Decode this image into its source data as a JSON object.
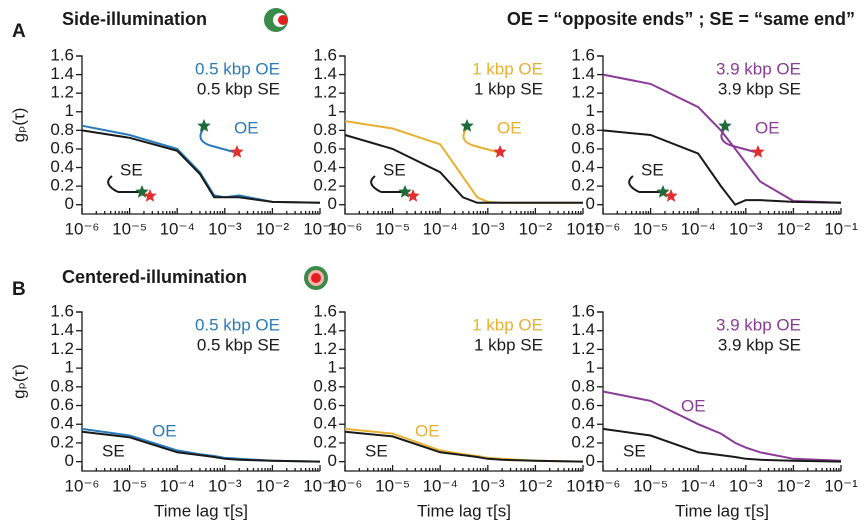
{
  "panels": [
    {
      "letter": "A",
      "title": "Side-illumination"
    },
    {
      "letter": "B",
      "title": "Centered-illumination"
    }
  ],
  "legend_note": "OE = “opposite ends” ; SE = “same end”",
  "chart_data": [
    {
      "type": "line",
      "log_x": true,
      "ylabel": "gₚ(τ)",
      "annotations": [
        "OE",
        "SE"
      ],
      "x": [
        1e-06,
        1e-05,
        0.0001,
        0.0003,
        0.0006,
        0.001,
        0.002,
        0.01,
        0.1
      ],
      "series": [
        {
          "name": "0.5 kbp OE",
          "color": "#2b7bba",
          "values": [
            0.85,
            0.75,
            0.6,
            0.35,
            0.1,
            0.08,
            0.1,
            0.03,
            0.02
          ]
        },
        {
          "name": "0.5 kbp SE",
          "color": "#1a1a1a",
          "values": [
            0.8,
            0.72,
            0.58,
            0.33,
            0.08,
            0.08,
            0.08,
            0.03,
            0.02
          ]
        }
      ],
      "xlim": [
        1e-06,
        0.1
      ],
      "ylim": [
        -0.1,
        1.6
      ],
      "xticks": [
        {
          "value": 1e-06,
          "label": "10⁻⁶"
        },
        {
          "value": 1e-05,
          "label": "10⁻⁵"
        },
        {
          "value": 0.0001,
          "label": "10⁻⁴"
        },
        {
          "value": 0.001,
          "label": "10⁻³"
        },
        {
          "value": 0.01,
          "label": "10⁻²"
        },
        {
          "value": 0.1,
          "label": "10⁻¹"
        }
      ],
      "yticks": [
        0,
        0.2,
        0.4,
        0.6,
        0.8,
        1,
        1.2,
        1.4,
        1.6
      ]
    },
    {
      "type": "line",
      "log_x": true,
      "annotations": [
        "OE",
        "SE"
      ],
      "x": [
        1e-06,
        1e-05,
        0.0001,
        0.0003,
        0.0006,
        0.001,
        0.002,
        0.01,
        0.1
      ],
      "series": [
        {
          "name": "1 kbp OE",
          "color": "#e8b030",
          "values": [
            0.9,
            0.82,
            0.65,
            0.3,
            0.08,
            0.03,
            0.02,
            0.02,
            0.02
          ]
        },
        {
          "name": "1 kbp SE",
          "color": "#1a1a1a",
          "values": [
            0.75,
            0.6,
            0.35,
            0.08,
            0.02,
            0.02,
            0.02,
            0.02,
            0.02
          ]
        }
      ],
      "xlim": [
        1e-06,
        0.1
      ],
      "ylim": [
        -0.1,
        1.6
      ],
      "xticks": [
        {
          "value": 1e-06,
          "label": "10⁻⁶"
        },
        {
          "value": 1e-05,
          "label": "10⁻⁵"
        },
        {
          "value": 0.0001,
          "label": "10⁻⁴"
        },
        {
          "value": 0.001,
          "label": "10⁻³"
        },
        {
          "value": 0.01,
          "label": "10⁻²"
        },
        {
          "value": 0.1,
          "label": "10⁻¹"
        }
      ],
      "yticks": [
        0,
        0.2,
        0.4,
        0.6,
        0.8,
        1,
        1.2,
        1.4,
        1.6
      ]
    },
    {
      "type": "line",
      "log_x": true,
      "annotations": [
        "OE",
        "SE"
      ],
      "x": [
        1e-06,
        1e-05,
        0.0001,
        0.0003,
        0.0006,
        0.001,
        0.002,
        0.01,
        0.1
      ],
      "series": [
        {
          "name": "3.9 kbp OE",
          "color": "#8a3c96",
          "values": [
            1.4,
            1.3,
            1.05,
            0.8,
            0.6,
            0.45,
            0.25,
            0.04,
            0.02
          ]
        },
        {
          "name": "3.9 kbp SE",
          "color": "#1a1a1a",
          "values": [
            0.8,
            0.75,
            0.55,
            0.2,
            0,
            0.05,
            0.05,
            0.03,
            0.02
          ]
        }
      ],
      "xlim": [
        1e-06,
        0.1
      ],
      "ylim": [
        -0.1,
        1.6
      ],
      "xticks": [
        {
          "value": 1e-06,
          "label": "10⁻⁶"
        },
        {
          "value": 1e-05,
          "label": "10⁻⁵"
        },
        {
          "value": 0.0001,
          "label": "10⁻⁴"
        },
        {
          "value": 0.001,
          "label": "10⁻³"
        },
        {
          "value": 0.01,
          "label": "10⁻²"
        },
        {
          "value": 0.1,
          "label": "10⁻¹"
        }
      ],
      "yticks": [
        0,
        0.2,
        0.4,
        0.6,
        0.8,
        1,
        1.2,
        1.4,
        1.6
      ]
    },
    {
      "type": "line",
      "log_x": true,
      "ylabel": "gₚ(τ)",
      "xlabel": "Time lag τ[s]",
      "annotations": [
        "OE",
        "SE"
      ],
      "x": [
        1e-06,
        1e-05,
        0.0001,
        0.0003,
        0.0006,
        0.001,
        0.002,
        0.01,
        0.1
      ],
      "series": [
        {
          "name": "0.5 kbp OE",
          "color": "#2b7bba",
          "values": [
            0.35,
            0.28,
            0.12,
            0.08,
            0.06,
            0.04,
            0.03,
            0.01,
            0
          ]
        },
        {
          "name": "0.5 kbp SE",
          "color": "#1a1a1a",
          "values": [
            0.32,
            0.26,
            0.1,
            0.07,
            0.05,
            0.03,
            0.02,
            0.01,
            0
          ]
        }
      ],
      "xlim": [
        1e-06,
        0.1
      ],
      "ylim": [
        -0.1,
        1.6
      ],
      "xticks": [
        {
          "value": 1e-06,
          "label": "10⁻⁶"
        },
        {
          "value": 1e-05,
          "label": "10⁻⁵"
        },
        {
          "value": 0.0001,
          "label": "10⁻⁴"
        },
        {
          "value": 0.001,
          "label": "10⁻³"
        },
        {
          "value": 0.01,
          "label": "10⁻²"
        },
        {
          "value": 0.1,
          "label": "10⁻¹"
        }
      ],
      "yticks": [
        0,
        0.2,
        0.4,
        0.6,
        0.8,
        1,
        1.2,
        1.4,
        1.6
      ]
    },
    {
      "type": "line",
      "log_x": true,
      "xlabel": "Time lag τ[s]",
      "annotations": [
        "OE",
        "SE"
      ],
      "x": [
        1e-06,
        1e-05,
        0.0001,
        0.0003,
        0.0006,
        0.001,
        0.002,
        0.01,
        0.1
      ],
      "series": [
        {
          "name": "1 kbp OE",
          "color": "#e8b030",
          "values": [
            0.35,
            0.3,
            0.12,
            0.08,
            0.06,
            0.04,
            0.03,
            0.01,
            0
          ]
        },
        {
          "name": "1 kbp SE",
          "color": "#1a1a1a",
          "values": [
            0.32,
            0.27,
            0.1,
            0.07,
            0.05,
            0.03,
            0.02,
            0.01,
            0
          ]
        }
      ],
      "xlim": [
        1e-06,
        0.1
      ],
      "ylim": [
        -0.1,
        1.6
      ],
      "xticks": [
        {
          "value": 1e-06,
          "label": "10⁻⁶"
        },
        {
          "value": 1e-05,
          "label": "10⁻⁵"
        },
        {
          "value": 0.0001,
          "label": "10⁻⁴"
        },
        {
          "value": 0.001,
          "label": "10⁻³"
        },
        {
          "value": 0.01,
          "label": "10⁻²"
        },
        {
          "value": 0.1,
          "label": "10⁻¹"
        }
      ],
      "yticks": [
        0,
        0.2,
        0.4,
        0.6,
        0.8,
        1,
        1.2,
        1.4,
        1.6
      ]
    },
    {
      "type": "line",
      "log_x": true,
      "xlabel": "Time lag τ[s]",
      "annotations": [
        "OE",
        "SE"
      ],
      "x": [
        1e-06,
        1e-05,
        0.0001,
        0.0003,
        0.0006,
        0.001,
        0.002,
        0.01,
        0.1
      ],
      "series": [
        {
          "name": "3.9 kbp OE",
          "color": "#8a3c96",
          "values": [
            0.75,
            0.65,
            0.4,
            0.3,
            0.2,
            0.15,
            0.1,
            0.03,
            0.01
          ]
        },
        {
          "name": "3.9 kbp SE",
          "color": "#1a1a1a",
          "values": [
            0.35,
            0.28,
            0.1,
            0.07,
            0.05,
            0.03,
            0.02,
            0.01,
            0
          ]
        }
      ],
      "xlim": [
        1e-06,
        0.1
      ],
      "ylim": [
        -0.1,
        1.6
      ],
      "xticks": [
        {
          "value": 1e-06,
          "label": "10⁻⁶"
        },
        {
          "value": 1e-05,
          "label": "10⁻⁵"
        },
        {
          "value": 0.0001,
          "label": "10⁻⁴"
        },
        {
          "value": 0.001,
          "label": "10⁻³"
        },
        {
          "value": 0.01,
          "label": "10⁻²"
        },
        {
          "value": 0.1,
          "label": "10⁻¹"
        }
      ],
      "yticks": [
        0,
        0.2,
        0.4,
        0.6,
        0.8,
        1,
        1.2,
        1.4,
        1.6
      ]
    }
  ]
}
